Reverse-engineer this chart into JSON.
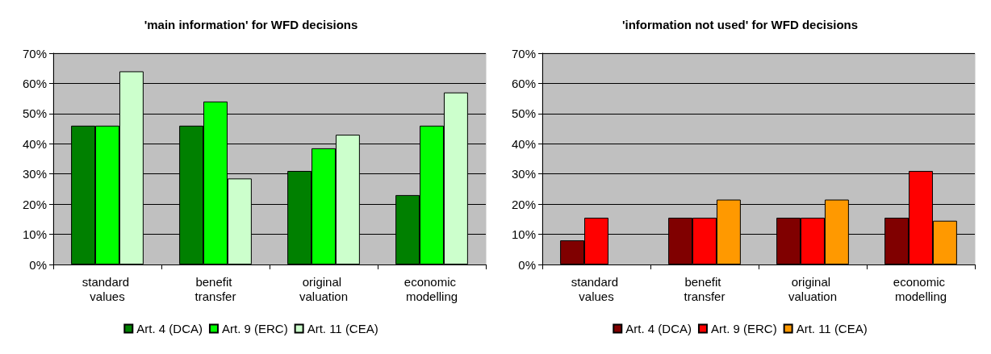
{
  "chart_data": [
    {
      "type": "bar",
      "title": "'main information' for WFD decisions",
      "categories": [
        "standard values",
        "benefit transfer",
        "original valuation",
        "economic modelling"
      ],
      "series": [
        {
          "name": "Art. 4 (DCA)",
          "color": "#008000",
          "values": [
            46,
            46,
            31,
            23
          ]
        },
        {
          "name": "Art. 9 (ERC)",
          "color": "#00ff00",
          "values": [
            46,
            54,
            38.5,
            46
          ]
        },
        {
          "name": "Art. 11 (CEA)",
          "color": "#ccffcc",
          "values": [
            64,
            28.5,
            43,
            57
          ]
        }
      ],
      "ylim": [
        0,
        70
      ],
      "yticks": [
        {
          "value": 0,
          "label": "0%"
        },
        {
          "value": 10,
          "label": "10%"
        },
        {
          "value": 20,
          "label": "20%"
        },
        {
          "value": 30,
          "label": "30%"
        },
        {
          "value": 40,
          "label": "40%"
        },
        {
          "value": 50,
          "label": "50%"
        },
        {
          "value": 60,
          "label": "60%"
        },
        {
          "value": 70,
          "label": "70%"
        }
      ],
      "grid": "y",
      "legend": "bottom"
    },
    {
      "type": "bar",
      "title": "'information not used' for WFD decisions",
      "categories": [
        "standard values",
        "benefit transfer",
        "original valuation",
        "economic modelling"
      ],
      "series": [
        {
          "name": "Art. 4 (DCA)",
          "color": "#800000",
          "values": [
            8,
            15.5,
            15.5,
            15.5
          ]
        },
        {
          "name": "Art. 9 (ERC)",
          "color": "#ff0000",
          "values": [
            15.5,
            15.5,
            15.5,
            31
          ]
        },
        {
          "name": "Art. 11 (CEA)",
          "color": "#ff9900",
          "values": [
            null,
            21.5,
            21.5,
            14.5
          ]
        }
      ],
      "ylim": [
        0,
        70
      ],
      "yticks": [
        {
          "value": 0,
          "label": "0%"
        },
        {
          "value": 10,
          "label": "10%"
        },
        {
          "value": 20,
          "label": "20%"
        },
        {
          "value": 30,
          "label": "30%"
        },
        {
          "value": 40,
          "label": "40%"
        },
        {
          "value": 50,
          "label": "50%"
        },
        {
          "value": 60,
          "label": "60%"
        },
        {
          "value": 70,
          "label": "70%"
        }
      ],
      "grid": "y",
      "legend": "bottom"
    }
  ]
}
